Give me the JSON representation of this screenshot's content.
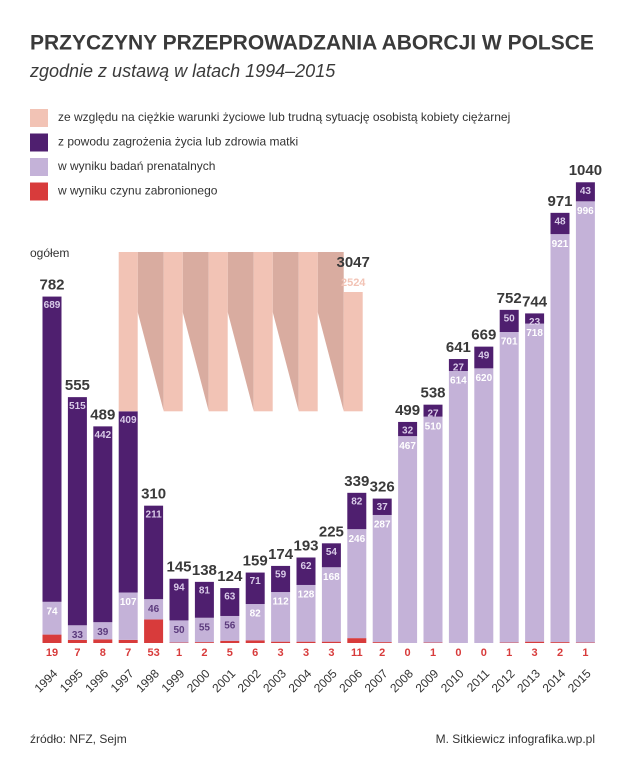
{
  "chart_data": {
    "type": "bar",
    "stacked": true,
    "title": "PRZYCZYNY PRZEPROWADZANIA ABORCJI W POLSCE",
    "subtitle": "zgodnie z ustawą w latach 1994–2015",
    "total_label": "ogółem",
    "categories": [
      "1994",
      "1995",
      "1996",
      "1997",
      "1998",
      "1999",
      "2000",
      "2001",
      "2002",
      "2003",
      "2004",
      "2005",
      "2006",
      "2007",
      "2008",
      "2009",
      "2010",
      "2011",
      "2012",
      "2013",
      "2014",
      "2015"
    ],
    "series": [
      {
        "name": "ze względu na ciężkie warunki życiowe lub trudną sytuację osobistą kobiety ciężarnej",
        "color": "#f2c3b5",
        "values": [
          null,
          null,
          null,
          2524,
          null,
          null,
          null,
          null,
          null,
          null,
          null,
          null,
          null,
          null,
          null,
          null,
          null,
          null,
          null,
          null,
          null,
          null
        ]
      },
      {
        "name": "z powodu zagrożenia życia lub zdrowia matki",
        "color": "#4f1f6f",
        "values": [
          689,
          515,
          442,
          409,
          211,
          94,
          81,
          63,
          71,
          59,
          62,
          54,
          82,
          37,
          32,
          27,
          27,
          49,
          50,
          23,
          48,
          43
        ]
      },
      {
        "name": "w wyniku badań prenatalnych",
        "color": "#c4b2d8",
        "values": [
          74,
          33,
          39,
          107,
          46,
          50,
          55,
          56,
          82,
          112,
          128,
          168,
          246,
          287,
          467,
          510,
          614,
          620,
          701,
          718,
          921,
          996
        ]
      },
      {
        "name": "w wyniku czynu zabronionego",
        "color": "#d83b3b",
        "values": [
          19,
          7,
          8,
          7,
          53,
          1,
          2,
          5,
          6,
          3,
          3,
          3,
          11,
          2,
          0,
          1,
          0,
          0,
          1,
          3,
          2,
          1
        ]
      }
    ],
    "totals": [
      782,
      555,
      489,
      3047,
      310,
      145,
      138,
      124,
      159,
      174,
      193,
      225,
      339,
      326,
      499,
      538,
      641,
      669,
      752,
      744,
      971,
      1040
    ],
    "source": "źródło: NFZ, Sejm",
    "author": "M. Sitkiewicz infografika.wp.pl"
  }
}
